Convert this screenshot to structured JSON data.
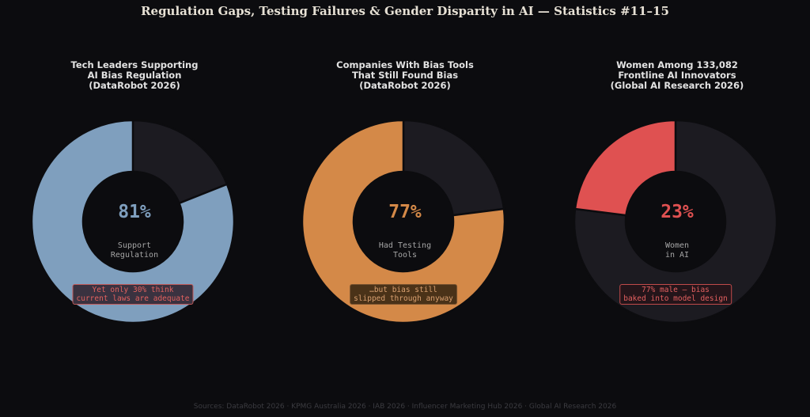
{
  "title": "Regulation Gaps, Testing Failures & Gender Disparity in AI — Statistics #11–15",
  "sources": "Sources: DataRobot 2026 · KPMG Australia 2026 · IAB 2026 · Influencer Marketing Hub 2026 · Global AI Research 2026",
  "chart_data": [
    {
      "type": "pie",
      "title_lines": [
        "Tech Leaders Supporting",
        "AI Bias Regulation",
        "(DataRobot 2026)"
      ],
      "values": [
        81,
        19
      ],
      "percent_label": "81%",
      "center_lines": [
        "Support",
        "Regulation"
      ],
      "note_lines": [
        "Yet only 30% think",
        "current laws are adequate"
      ],
      "colors": {
        "main": "#7f9fbe",
        "rest": "#1c1b21",
        "pct": "#7f9fbe",
        "note_bg": "#3a3240",
        "note_border": "#c15a5a",
        "note_text": "#e3625f"
      }
    },
    {
      "type": "pie",
      "title_lines": [
        "Companies With Bias Tools",
        "That Still Found Bias",
        "(DataRobot 2026)"
      ],
      "values": [
        77,
        23
      ],
      "percent_label": "77%",
      "center_lines": [
        "Had Testing",
        "Tools"
      ],
      "note_lines": [
        "…but bias still",
        "slipped through anyway"
      ],
      "colors": {
        "main": "#d48948",
        "rest": "#1c1b21",
        "pct": "#d48948",
        "note_bg": "#4a3218",
        "note_border": "#7a5430",
        "note_text": "#d9a070"
      }
    },
    {
      "type": "pie",
      "title_lines": [
        "Women Among 133,082",
        "Frontline AI Innovators",
        "(Global AI Research 2026)"
      ],
      "values": [
        23,
        77
      ],
      "percent_label": "23%",
      "center_lines": [
        "Women",
        "in AI"
      ],
      "note_lines": [
        "77% male — bias",
        "baked into model design"
      ],
      "colors": {
        "main": "#df5151",
        "rest": "#1c1b21",
        "pct": "#df5151",
        "note_bg": "#24151a",
        "note_border": "#c04a4a",
        "note_text": "#e36060"
      }
    }
  ]
}
